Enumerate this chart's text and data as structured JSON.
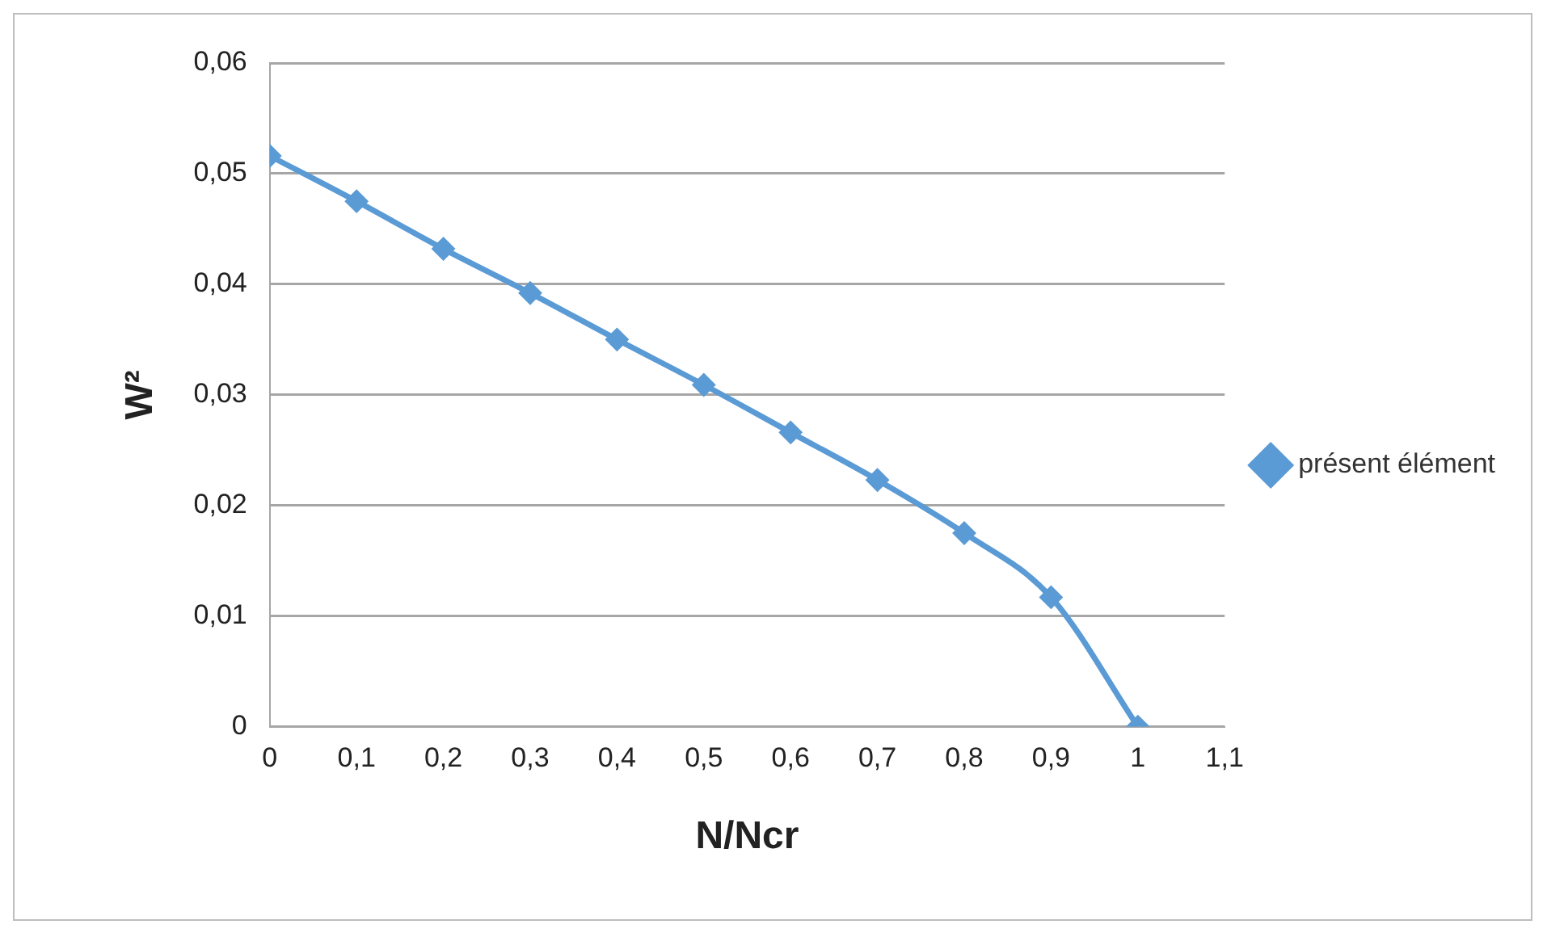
{
  "chart_data": {
    "type": "line",
    "xlabel": "N/Ncr",
    "ylabel": "W²",
    "x": [
      0,
      0.1,
      0.2,
      0.3,
      0.4,
      0.5,
      0.6,
      0.7,
      0.8,
      0.9,
      1
    ],
    "series": [
      {
        "name": "présent élément",
        "color": "#5b9bd5",
        "values": [
          0.0516,
          0.0475,
          0.0432,
          0.0392,
          0.035,
          0.0309,
          0.0266,
          0.0223,
          0.0175,
          0.0117,
          0
        ]
      }
    ],
    "xlim": [
      0,
      1.1
    ],
    "xticks": [
      0,
      {
        "value": 0.1,
        "label": "0,1"
      },
      {
        "value": 0.2,
        "label": "0,2"
      },
      {
        "value": 0.3,
        "label": "0,3"
      },
      {
        "value": 0.4,
        "label": "0,4"
      },
      {
        "value": 0.5,
        "label": "0,5"
      },
      {
        "value": 0.6,
        "label": "0,6"
      },
      {
        "value": 0.7,
        "label": "0,7"
      },
      {
        "value": 0.8,
        "label": "0,8"
      },
      {
        "value": 0.9,
        "label": "0,9"
      },
      1,
      {
        "value": 1.1,
        "label": "1,1"
      }
    ],
    "ylim": [
      0,
      0.06
    ],
    "yticks": [
      0,
      {
        "value": 0.01,
        "label": "0,01"
      },
      {
        "value": 0.02,
        "label": "0,02"
      },
      {
        "value": 0.03,
        "label": "0,03"
      },
      {
        "value": 0.04,
        "label": "0,04"
      },
      {
        "value": 0.05,
        "label": "0,05"
      },
      {
        "value": 0.06,
        "label": "0,06"
      }
    ],
    "grid": "y",
    "legend": "right",
    "marker": "diamond",
    "line_style": "solid"
  }
}
